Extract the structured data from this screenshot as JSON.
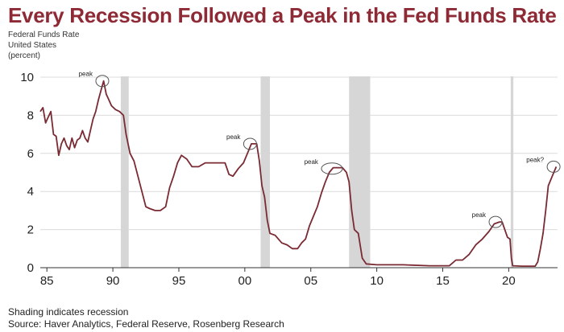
{
  "title": "Every Recession Followed a Peak in the Fed Funds Rate",
  "subtitle": [
    "Federal Funds Rate",
    "United States",
    "(percent)"
  ],
  "footer": {
    "note": "Shading indicates recession",
    "source": "Source: Haver Analytics, Federal Reserve, Rosenberg Research"
  },
  "colors": {
    "title": "#8e2a35",
    "line": "#7a2a32",
    "recession": "#d6d6d6",
    "grid": "#dcdcdc"
  },
  "chart_data": {
    "type": "line",
    "xlim": [
      1984.5,
      2023.7
    ],
    "ylim": [
      0,
      10
    ],
    "x_ticks": [
      {
        "value": 1985,
        "label": "85"
      },
      {
        "value": 1990,
        "label": "90"
      },
      {
        "value": 1995,
        "label": "95"
      },
      {
        "value": 2000,
        "label": "00"
      },
      {
        "value": 2005,
        "label": "05"
      },
      {
        "value": 2010,
        "label": "10"
      },
      {
        "value": 2015,
        "label": "15"
      },
      {
        "value": 2020,
        "label": "20"
      }
    ],
    "y_ticks": [
      0,
      2,
      4,
      6,
      8,
      10
    ],
    "grid": "horizontal",
    "recessions": [
      [
        1990.6,
        1991.2
      ],
      [
        2001.2,
        2001.9
      ],
      [
        2007.9,
        2009.5
      ],
      [
        2020.15,
        2020.35
      ]
    ],
    "annotations": [
      {
        "label": "peak",
        "x": 1989.2,
        "y": 9.8
      },
      {
        "label": "peak",
        "x": 2000.4,
        "y": 6.5
      },
      {
        "label": "peak",
        "x": 2006.6,
        "y": 5.2
      },
      {
        "label": "peak",
        "x": 2019.0,
        "y": 2.4
      },
      {
        "label": "peak?",
        "x": 2023.4,
        "y": 5.3
      }
    ],
    "series": [
      {
        "x": [
          1984.5,
          1984.7,
          1984.9,
          1985.1,
          1985.3,
          1985.5,
          1985.7,
          1985.9,
          1986.1,
          1986.3,
          1986.5,
          1986.7,
          1986.9,
          1987.1,
          1987.3,
          1987.5,
          1987.7,
          1987.9,
          1988.1,
          1988.3,
          1988.5,
          1988.7,
          1988.9,
          1989.1,
          1989.3,
          1989.5,
          1989.7,
          1989.9,
          1990.2,
          1990.5,
          1990.8,
          1991.0,
          1991.3,
          1991.6,
          1991.9,
          1992.2,
          1992.5,
          1992.8,
          1993.2,
          1993.6,
          1994.0,
          1994.3,
          1994.6,
          1994.9,
          1995.2,
          1995.6,
          1996.0,
          1996.5,
          1997.0,
          1997.5,
          1998.0,
          1998.5,
          1998.8,
          1999.1,
          1999.5,
          1999.9,
          2000.2,
          2000.5,
          2000.9,
          2001.1,
          2001.3,
          2001.5,
          2001.7,
          2001.9,
          2002.3,
          2002.8,
          2003.2,
          2003.6,
          2004.0,
          2004.3,
          2004.6,
          2004.9,
          2005.2,
          2005.5,
          2005.8,
          2006.1,
          2006.4,
          2006.7,
          2007.0,
          2007.4,
          2007.7,
          2007.9,
          2008.1,
          2008.3,
          2008.6,
          2008.9,
          2009.2,
          2010.0,
          2012.0,
          2014.0,
          2015.5,
          2016.0,
          2016.5,
          2017.0,
          2017.5,
          2018.0,
          2018.5,
          2018.9,
          2019.3,
          2019.5,
          2019.7,
          2019.9,
          2020.1,
          2020.2,
          2020.3,
          2021.0,
          2021.5,
          2022.0,
          2022.2,
          2022.4,
          2022.6,
          2022.8,
          2023.0,
          2023.3,
          2023.6
        ],
        "y": [
          8.2,
          8.4,
          7.6,
          7.9,
          8.2,
          7.0,
          6.9,
          5.9,
          6.5,
          6.8,
          6.4,
          6.2,
          6.8,
          6.3,
          6.7,
          6.8,
          7.2,
          6.8,
          6.6,
          7.2,
          7.8,
          8.2,
          8.8,
          9.3,
          9.8,
          9.1,
          8.8,
          8.5,
          8.3,
          8.2,
          8.0,
          7.0,
          6.0,
          5.6,
          4.8,
          4.0,
          3.2,
          3.1,
          3.0,
          3.0,
          3.2,
          4.2,
          4.8,
          5.5,
          5.9,
          5.7,
          5.3,
          5.3,
          5.5,
          5.5,
          5.5,
          5.5,
          4.9,
          4.8,
          5.2,
          5.5,
          6.0,
          6.5,
          6.5,
          5.6,
          4.3,
          3.7,
          2.5,
          1.8,
          1.7,
          1.3,
          1.2,
          1.0,
          1.0,
          1.3,
          1.5,
          2.2,
          2.7,
          3.2,
          3.9,
          4.5,
          5.0,
          5.25,
          5.25,
          5.25,
          5.0,
          4.5,
          3.0,
          2.0,
          1.8,
          0.5,
          0.2,
          0.15,
          0.15,
          0.1,
          0.1,
          0.4,
          0.4,
          0.7,
          1.2,
          1.5,
          1.9,
          2.3,
          2.4,
          2.4,
          2.0,
          1.6,
          1.5,
          0.5,
          0.1,
          0.08,
          0.08,
          0.08,
          0.3,
          1.0,
          1.8,
          3.0,
          4.3,
          4.8,
          5.3
        ]
      }
    ]
  }
}
